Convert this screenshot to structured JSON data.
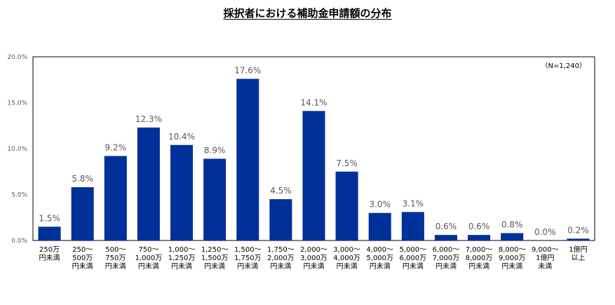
{
  "chart_data": {
    "type": "bar",
    "title": "採択者における補助金申請額の分布",
    "note": "（N=1,240）",
    "ylim": [
      0,
      20
    ],
    "yticks": [
      "0.0%",
      "5.0%",
      "10.0%",
      "15.0%",
      "20.0%"
    ],
    "ytick_values": [
      0,
      5,
      10,
      15,
      20
    ],
    "bar_color": "#00309A",
    "categories": [
      [
        "250万",
        "円未満"
      ],
      [
        "250～",
        "500万",
        "円未満"
      ],
      [
        "500～",
        "750万",
        "円未満"
      ],
      [
        "750～",
        "1,000万",
        "円未満"
      ],
      [
        "1,000～",
        "1,250万",
        "円未満"
      ],
      [
        "1,250～",
        "1,500万",
        "円未満"
      ],
      [
        "1,500～",
        "1,750万",
        "円未満"
      ],
      [
        "1,750～",
        "2,000万",
        "円未満"
      ],
      [
        "2,000～",
        "3,000万",
        "円未満"
      ],
      [
        "3,000～",
        "4,000万",
        "円未満"
      ],
      [
        "4,000～",
        "5,000万",
        "円未満"
      ],
      [
        "5,000～",
        "6,000万",
        "円未満"
      ],
      [
        "6,000～",
        "7,000万",
        "円未満"
      ],
      [
        "7,000～",
        "8,000万",
        "円未満"
      ],
      [
        "8,000～",
        "9,000万",
        "円未満"
      ],
      [
        "9,000～",
        "1億円",
        "未満"
      ],
      [
        "1億円",
        "以上"
      ]
    ],
    "values": [
      1.5,
      5.8,
      9.2,
      12.3,
      10.4,
      8.9,
      17.6,
      4.5,
      14.1,
      7.5,
      3.0,
      3.1,
      0.6,
      0.6,
      0.8,
      0.0,
      0.2
    ],
    "data_labels": [
      "1.5%",
      "5.8%",
      "9.2%",
      "12.3%",
      "10.4%",
      "8.9%",
      "17.6%",
      "4.5%",
      "14.1%",
      "7.5%",
      "3.0%",
      "3.1%",
      "0.6%",
      "0.6%",
      "0.8%",
      "0.0%",
      "0.2%"
    ]
  }
}
